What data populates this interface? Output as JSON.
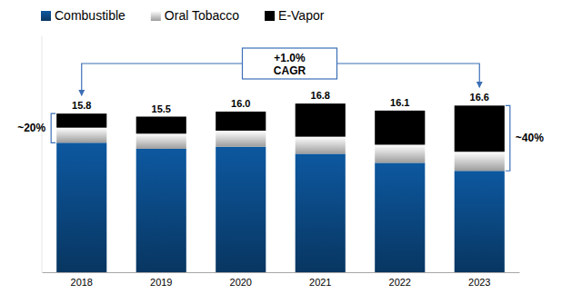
{
  "chart_data": {
    "type": "bar",
    "stacked": true,
    "categories": [
      "2018",
      "2019",
      "2020",
      "2021",
      "2022",
      "2023"
    ],
    "series": [
      {
        "name": "Combustible",
        "color": "#0b4a86",
        "values": [
          12.9,
          12.3,
          12.5,
          11.8,
          10.9,
          10.1
        ]
      },
      {
        "name": "Oral Tobacco",
        "color": "#d9d9d9",
        "values": [
          1.5,
          1.5,
          1.6,
          1.7,
          1.8,
          1.9
        ]
      },
      {
        "name": "E-Vapor",
        "color": "#000000",
        "values": [
          1.4,
          1.7,
          1.9,
          3.3,
          3.4,
          4.6
        ]
      }
    ],
    "totals": [
      15.8,
      15.5,
      16.0,
      16.8,
      16.1,
      16.6
    ],
    "total_labels": [
      "15.8",
      "15.5",
      "16.0",
      "16.8",
      "16.1",
      "16.6"
    ],
    "annotations": {
      "cagr": [
        "+1.0%",
        "CAGR"
      ],
      "share_start": "~20%",
      "share_end": "~40%"
    },
    "ylim": [
      0,
      23.5
    ],
    "tick_labels": "x",
    "legend": "top"
  }
}
